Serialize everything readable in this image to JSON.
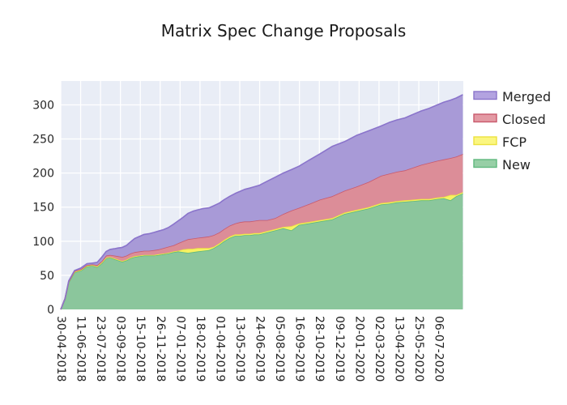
{
  "figure": {
    "background": "#ffffff"
  },
  "chart_data": {
    "type": "area",
    "stacked": true,
    "title": "Matrix Spec Change Proposals",
    "plot_background": "#e9edf6",
    "grid_color": "#ffffff",
    "text_color": "#262626",
    "grid_on": true,
    "legend_position": "right-outside",
    "x_axis": {
      "start_date": "30-04-2018",
      "tick_interval_days": 42,
      "range_days": [
        0,
        850
      ],
      "label_rotation_deg": 90,
      "tick_labels": [
        "30-04-2018",
        "11-06-2018",
        "23-07-2018",
        "03-09-2018",
        "15-10-2018",
        "26-11-2018",
        "07-01-2019",
        "18-02-2019",
        "01-04-2019",
        "13-05-2019",
        "24-06-2019",
        "05-08-2019",
        "16-09-2019",
        "28-10-2019",
        "09-12-2019",
        "20-01-2020",
        "02-03-2020",
        "13-04-2020",
        "25-05-2020",
        "06-07-2020"
      ]
    },
    "y_axis": {
      "ticks": [
        0,
        50,
        100,
        150,
        200,
        250,
        300
      ],
      "range": [
        0,
        335
      ]
    },
    "x_days": [
      0,
      9,
      17,
      29,
      43,
      55,
      67,
      77,
      87,
      96,
      104,
      113,
      121,
      130,
      139,
      147,
      156,
      166,
      176,
      186,
      197,
      207,
      217,
      227,
      238,
      248,
      258,
      269,
      279,
      289,
      301,
      313,
      323,
      335,
      345,
      357,
      368,
      378,
      388,
      399,
      409,
      419,
      436,
      453,
      470,
      487,
      503,
      522,
      547,
      573,
      599,
      624,
      650,
      676,
      693,
      710,
      727,
      744,
      761,
      778,
      795,
      809,
      823,
      835,
      849
    ],
    "stack_order_bottom_to_top": [
      "New",
      "FCP",
      "Closed",
      "Merged"
    ],
    "series": [
      {
        "name": "New",
        "fill": "#8bc69c",
        "line": "#5fb87d",
        "legend_fill": "#97cfa6",
        "values": [
          0,
          15,
          40,
          54,
          57,
          63,
          64,
          62,
          68,
          75,
          76,
          74,
          72,
          70,
          72,
          75,
          77,
          78,
          79,
          79,
          79,
          80,
          81,
          82,
          84,
          85,
          84,
          83,
          84,
          85,
          86,
          87,
          90,
          95,
          100,
          105,
          108,
          108,
          109,
          109,
          110,
          110,
          113,
          116,
          119,
          116,
          124,
          126,
          129,
          132,
          140,
          144,
          148,
          154,
          155,
          157,
          158,
          159,
          160,
          160,
          162,
          163,
          160,
          166,
          170
        ]
      },
      {
        "name": "FCP",
        "fill": "#f7f162",
        "line": "#ece23f",
        "legend_fill": "#fbf680",
        "values": [
          0,
          1,
          1,
          1,
          1,
          1,
          1,
          1,
          1,
          1,
          1,
          1,
          1,
          1,
          1,
          1,
          1,
          1,
          1,
          1,
          1,
          1,
          1,
          1,
          1,
          1,
          4,
          6,
          5,
          5,
          4,
          3,
          2,
          2,
          2,
          2,
          2,
          2,
          2,
          2,
          2,
          2,
          2,
          2,
          2,
          6,
          2,
          2,
          2,
          2,
          2,
          2,
          2,
          2,
          2,
          2,
          2,
          2,
          2,
          2,
          2,
          2,
          8,
          2,
          2
        ]
      },
      {
        "name": "Closed",
        "fill": "#dc8d98",
        "line": "#c9596c",
        "legend_fill": "#e39aa4",
        "values": [
          0,
          0,
          0,
          1,
          1,
          1,
          1,
          2,
          2,
          3,
          3,
          4,
          5,
          6,
          6,
          6,
          6,
          6,
          6,
          6,
          7,
          7,
          8,
          9,
          9,
          11,
          12,
          14,
          15,
          15,
          16,
          17,
          17,
          16,
          16,
          16,
          16,
          18,
          18,
          18,
          18,
          19,
          16,
          16,
          19,
          23,
          23,
          26,
          30,
          32,
          32,
          34,
          37,
          40,
          42,
          43,
          44,
          47,
          50,
          53,
          54,
          55,
          54,
          56,
          56
        ]
      },
      {
        "name": "Merged",
        "fill": "#a89ad7",
        "line": "#8a74cb",
        "legend_fill": "#b3a3e0",
        "values": [
          0,
          0,
          1,
          1,
          2,
          2,
          2,
          4,
          6,
          6,
          8,
          10,
          12,
          14,
          15,
          17,
          20,
          22,
          24,
          25,
          26,
          27,
          27,
          28,
          31,
          33,
          35,
          38,
          40,
          41,
          42,
          42,
          43,
          43,
          43,
          43,
          44,
          45,
          47,
          49,
          50,
          51,
          57,
          60,
          60,
          60,
          61,
          64,
          67,
          73,
          72,
          75,
          75,
          73,
          75,
          76,
          77,
          78,
          79,
          80,
          82,
          84,
          85,
          86,
          87
        ]
      }
    ],
    "legend_order": [
      "Merged",
      "Closed",
      "FCP",
      "New"
    ]
  }
}
